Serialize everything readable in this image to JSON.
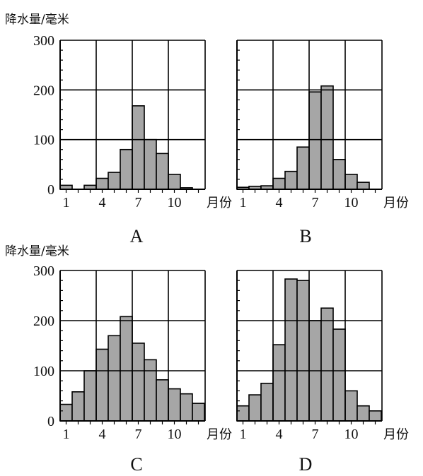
{
  "chart_data": [
    {
      "type": "bar",
      "title": "A",
      "ylabel": "降水量/毫米",
      "xlabel": "月份",
      "ylim": [
        0,
        300
      ],
      "yticks": [
        "0",
        "100",
        "200",
        "300"
      ],
      "xticks": [
        "1",
        "4",
        "7",
        "10"
      ],
      "categories": [
        "1",
        "2",
        "3",
        "4",
        "5",
        "6",
        "7",
        "8",
        "9",
        "10",
        "11",
        "12"
      ],
      "values": [
        8,
        0,
        8,
        22,
        34,
        80,
        168,
        100,
        72,
        30,
        3,
        0
      ]
    },
    {
      "type": "bar",
      "title": "B",
      "ylabel": "",
      "xlabel": "月份",
      "ylim": [
        0,
        300
      ],
      "yticks": [],
      "xticks": [
        "1",
        "4",
        "7",
        "10"
      ],
      "categories": [
        "1",
        "2",
        "3",
        "4",
        "5",
        "6",
        "7",
        "8",
        "9",
        "10",
        "11",
        "12"
      ],
      "values": [
        4,
        6,
        7,
        22,
        36,
        85,
        196,
        208,
        60,
        30,
        14,
        0
      ]
    },
    {
      "type": "bar",
      "title": "C",
      "ylabel": "降水量/毫米",
      "xlabel": "月份",
      "ylim": [
        0,
        300
      ],
      "yticks": [
        "0",
        "100",
        "200",
        "300"
      ],
      "xticks": [
        "1",
        "4",
        "7",
        "10"
      ],
      "categories": [
        "1",
        "2",
        "3",
        "4",
        "5",
        "6",
        "7",
        "8",
        "9",
        "10",
        "11",
        "12"
      ],
      "values": [
        33,
        58,
        100,
        143,
        170,
        208,
        155,
        122,
        82,
        64,
        54,
        35
      ]
    },
    {
      "type": "bar",
      "title": "D",
      "ylabel": "",
      "xlabel": "月份",
      "ylim": [
        0,
        300
      ],
      "yticks": [],
      "xticks": [
        "1",
        "4",
        "7",
        "10"
      ],
      "categories": [
        "1",
        "2",
        "3",
        "4",
        "5",
        "6",
        "7",
        "8",
        "9",
        "10",
        "11",
        "12"
      ],
      "values": [
        30,
        52,
        75,
        152,
        283,
        280,
        200,
        225,
        183,
        60,
        30,
        20
      ]
    }
  ],
  "style": {
    "bar_color": "#a6a6a6",
    "grid": true,
    "grid_color": "#000000",
    "axis_color": "#000000"
  }
}
